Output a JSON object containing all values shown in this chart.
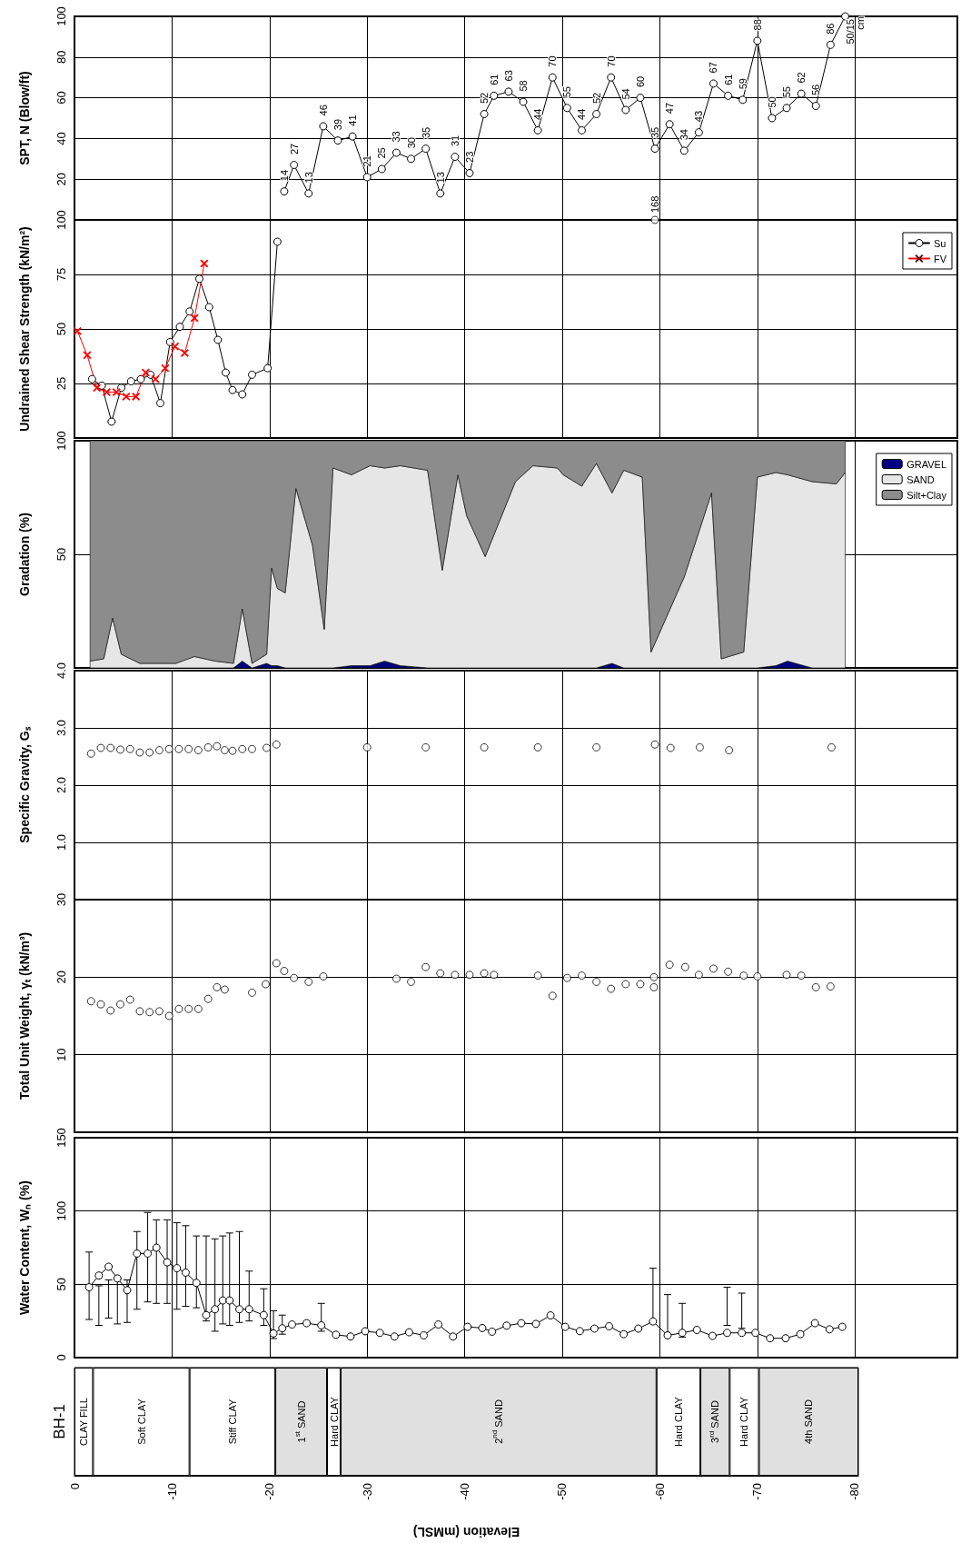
{
  "chart_data": [
    {
      "type": "line",
      "ylabel": "SPT, N (Blow/ft)",
      "xlim": [
        0,
        -90.5
      ],
      "xticks": [
        0,
        -10,
        -20,
        -30,
        -40,
        -50,
        -60,
        -70,
        -80
      ],
      "ylim": [
        0,
        100
      ],
      "yticks": [
        {
          "value": 0,
          "label": null
        },
        20,
        40,
        60,
        80,
        100
      ],
      "tick_labels": "y",
      "grid": true,
      "marker": "circle",
      "series": [
        {
          "color": "#000000",
          "x": [
            -21.5,
            -22.5,
            -24,
            -25.5,
            -27,
            -28.5,
            -30,
            -31.5,
            -33,
            -34.5,
            -36,
            -37.5,
            -39,
            -40.5,
            -42,
            -43,
            -44.5,
            -46,
            -47.5,
            -49,
            -50.5,
            -52,
            -53.5,
            -55,
            -56.5,
            -58,
            -59.5,
            -61,
            -62.5,
            -64,
            -65.5,
            -67,
            -68.5,
            -70,
            -71.5,
            -73,
            -74.5,
            -76,
            -77.5,
            -79
          ],
          "values": [
            14,
            27,
            13,
            46,
            39,
            41,
            21,
            25,
            33,
            30,
            35,
            13,
            31,
            23,
            52,
            61,
            63,
            58,
            44,
            70,
            55,
            44,
            52,
            70,
            54,
            60,
            35,
            47,
            34,
            43,
            67,
            61,
            59,
            88,
            50,
            55,
            62,
            56,
            86,
            100
          ],
          "value_labels": [
            "14",
            "27",
            "13",
            "46",
            "39",
            "41",
            "21",
            "25",
            "33",
            "30",
            "35",
            "13",
            "31",
            "23",
            "52",
            "61",
            "63",
            "58",
            "44",
            "70",
            "55",
            "44",
            "52",
            "70",
            "54",
            "60",
            "35",
            "47",
            "34",
            "43",
            "67",
            "61",
            "59",
            "88",
            "50",
            "55",
            "62",
            "56",
            "86",
            "50/15 cm"
          ]
        }
      ]
    },
    {
      "type": "line",
      "ylabel": "Undrained Shear Strength (kN/m²)",
      "xlim": [
        0,
        -90.5
      ],
      "xticks": [
        0,
        -10,
        -20,
        -30,
        -40,
        -50,
        -60,
        -70,
        -80
      ],
      "ylim": [
        0,
        100
      ],
      "yticks": [
        {
          "value": 0,
          "label": null
        },
        25,
        50,
        75,
        100
      ],
      "tick_labels": "y",
      "grid": true,
      "legend": "top right",
      "annotations": [
        "168"
      ],
      "series": [
        {
          "name": "Su",
          "color": "#000000",
          "marker": "circle",
          "x": [
            -1.8,
            -2.8,
            -3.8,
            -4.8,
            -5.8,
            -6.8,
            -7.8,
            -8.8,
            -9.8,
            -10.8,
            -11.8,
            -12.8,
            -13.8,
            -14.7,
            -15.5,
            -16.2,
            -17.2,
            -18.2,
            -19.8,
            -20.8
          ],
          "values": [
            27,
            24,
            7.5,
            23,
            26,
            27,
            29,
            16,
            44,
            51,
            58,
            73,
            60,
            45,
            30,
            22,
            20,
            29,
            32,
            90
          ]
        },
        {
          "name": "FV",
          "color": "#ff0000",
          "marker": "cross",
          "x": [
            -0.3,
            -1.3,
            -2.3,
            -3.3,
            -4.3,
            -5.3,
            -6.3,
            -7.3,
            -8.3,
            -9.3,
            -10.3,
            -11.3,
            -12.3,
            -13.3
          ],
          "values": [
            49,
            38,
            23,
            21,
            21,
            19,
            19,
            30,
            27,
            32,
            42,
            39,
            55,
            80
          ]
        },
        {
          "type": "scatter",
          "color": "#000000",
          "marker": "circle",
          "x": [
            -59.5
          ],
          "values": [
            100
          ]
        }
      ]
    },
    {
      "type": "area",
      "stacked": true,
      "ylabel": "Gradation (%)",
      "xlim": [
        0,
        -90.5
      ],
      "xticks": [
        0,
        -10,
        -20,
        -30,
        -40,
        -50,
        -60,
        -70,
        -80
      ],
      "ylim": [
        0,
        100
      ],
      "yticks": [
        {
          "value": 0,
          "label": null
        },
        50,
        100
      ],
      "tick_labels": "y",
      "grid": true,
      "legend": "top right",
      "x": [
        -1.6,
        -3,
        -3.9,
        -4.8,
        -6.7,
        -10.4,
        -12.3,
        -14.4,
        -16.3,
        -17.2,
        -18.2,
        -19.7,
        -20.2,
        -20.8,
        -21.6,
        -22.7,
        -24.4,
        -25.6,
        -26.5,
        -28.4,
        -30.3,
        -31.8,
        -33.4,
        -36.2,
        -37.7,
        -39.3,
        -40.2,
        -42.1,
        -45.2,
        -47,
        -49.5,
        -50.1,
        -52,
        -53.5,
        -55.1,
        -56.3,
        -58.2,
        -59.1,
        -62.5,
        -65.3,
        -66.3,
        -68.6,
        -70,
        -71.9,
        -73.1,
        -75.6,
        -78.1,
        -79
      ],
      "series": [
        {
          "name": "GRAVEL",
          "color": "#000080",
          "values": [
            0,
            0,
            0,
            0,
            0,
            0,
            0,
            0,
            0,
            3,
            0,
            2,
            1,
            1,
            0,
            0,
            0,
            0,
            0,
            1,
            1,
            3,
            1,
            0,
            0,
            0,
            0,
            0,
            0,
            0,
            0,
            0,
            0,
            0,
            2,
            0,
            0,
            0,
            0,
            0,
            0,
            0,
            0,
            1,
            3,
            0,
            0,
            0
          ]
        },
        {
          "name": "SAND",
          "color": "#e6e6e6",
          "values": [
            3,
            4,
            22,
            6,
            2,
            2,
            5,
            3,
            2,
            23,
            2,
            4,
            43,
            34,
            33,
            79,
            54,
            17,
            88,
            84,
            88,
            85,
            88,
            87,
            43,
            85,
            67,
            49,
            82,
            89,
            88,
            85,
            80,
            90,
            75,
            87,
            84,
            7,
            40,
            77,
            4,
            7,
            84,
            85,
            82,
            82,
            81,
            86
          ]
        },
        {
          "name": "Silt+Clay",
          "color": "#8c8c8c",
          "values": [
            97,
            96,
            78,
            94,
            98,
            98,
            95,
            97,
            98,
            74,
            98,
            94,
            56,
            65,
            67,
            21,
            46,
            83,
            12,
            15,
            11,
            12,
            11,
            13,
            57,
            15,
            33,
            51,
            18,
            11,
            12,
            15,
            20,
            10,
            23,
            13,
            16,
            93,
            60,
            23,
            96,
            93,
            16,
            14,
            15,
            18,
            19,
            14
          ]
        }
      ]
    },
    {
      "type": "scatter",
      "ylabel": "Specific Gravity, Gₛ",
      "xlim": [
        0,
        -90.5
      ],
      "xticks": [
        0,
        -10,
        -20,
        -30,
        -40,
        -50,
        -60,
        -70,
        -80
      ],
      "ylim": [
        0,
        4
      ],
      "yticks": [
        {
          "value": 0,
          "label": null
        },
        {
          "value": 1,
          "label": "1.0"
        },
        {
          "value": 2,
          "label": "2.0"
        },
        {
          "value": 3,
          "label": "3.0"
        },
        {
          "value": 4,
          "label": "4.0"
        }
      ],
      "tick_labels": "y",
      "grid": true,
      "marker": "circle",
      "series": [
        {
          "color": "#000000",
          "x": [
            -1.7,
            -2.7,
            -3.7,
            -4.7,
            -5.7,
            -6.7,
            -7.7,
            -8.7,
            -9.7,
            -10.7,
            -11.7,
            -12.7,
            -13.7,
            -14.6,
            -15.4,
            -16.2,
            -17.2,
            -18.2,
            -19.7,
            -20.7,
            -30,
            -36,
            -42,
            -47.5,
            -53.5,
            -59.5,
            -61.1,
            -64.1,
            -67.1,
            -77.6
          ],
          "values": [
            2.55,
            2.65,
            2.65,
            2.62,
            2.63,
            2.57,
            2.57,
            2.61,
            2.63,
            2.63,
            2.63,
            2.61,
            2.66,
            2.68,
            2.61,
            2.6,
            2.63,
            2.63,
            2.65,
            2.71,
            2.66,
            2.66,
            2.66,
            2.66,
            2.66,
            2.71,
            2.65,
            2.66,
            2.61,
            2.66
          ]
        }
      ]
    },
    {
      "type": "scatter",
      "ylabel": "Total Unit Weight, γₜ (kN/m³)",
      "xlim": [
        0,
        -90.5
      ],
      "xticks": [
        0,
        -10,
        -20,
        -30,
        -40,
        -50,
        -60,
        -70,
        -80
      ],
      "ylim": [
        0,
        30
      ],
      "yticks": [
        {
          "value": 0,
          "label": null
        },
        10,
        20,
        30
      ],
      "tick_labels": "y",
      "grid": true,
      "marker": "circle",
      "series": [
        {
          "color": "#000000",
          "x": [
            -1.7,
            -2.7,
            -3.7,
            -4.7,
            -5.7,
            -6.7,
            -7.7,
            -8.7,
            -9.7,
            -10.7,
            -11.7,
            -12.7,
            -13.7,
            -14.6,
            -15.4,
            -18.2,
            -19.6,
            -20.7,
            -21.5,
            -22.5,
            -24,
            -25.5,
            -33,
            -34.5,
            -36,
            -37.5,
            -39,
            -40.5,
            -42,
            -43,
            -47.5,
            -49,
            -50.5,
            -52,
            -53.5,
            -55,
            -56.5,
            -58,
            -59.4,
            -59.4,
            -61,
            -62.6,
            -64,
            -65.5,
            -67,
            -68.6,
            -70,
            -73,
            -74.5,
            -76,
            -77.5
          ],
          "values": [
            16.9,
            16.5,
            15.7,
            16.5,
            17.1,
            15.6,
            15.5,
            15.6,
            15,
            15.9,
            15.9,
            15.9,
            17.2,
            18.7,
            18.4,
            18,
            19.1,
            21.8,
            20.8,
            19.9,
            19.4,
            20.1,
            19.8,
            19.4,
            21.3,
            20.5,
            20.3,
            20.3,
            20.5,
            20.3,
            20.2,
            17.6,
            19.9,
            20.2,
            19.4,
            18.5,
            19.1,
            19.1,
            20,
            18.7,
            21.6,
            21.3,
            20.3,
            21.1,
            20.7,
            20.2,
            20.1,
            20.3,
            20.2,
            18.7,
            18.8
          ]
        }
      ]
    },
    {
      "type": "line",
      "ylabel": "Water Content, Wₙ (%)",
      "xlim": [
        0,
        -90.5
      ],
      "xticks": [
        0,
        -10,
        -20,
        -30,
        -40,
        -50,
        -60,
        -70,
        -80
      ],
      "ylim": [
        0,
        150
      ],
      "yticks": [
        0,
        50,
        100,
        150
      ],
      "tick_labels": "y",
      "grid": true,
      "marker": "circle",
      "series": [
        {
          "color": "#000000",
          "x": [
            -1.5,
            -2.5,
            -3.5,
            -4.4,
            -5.4,
            -6.4,
            -7.5,
            -8.4,
            -9.5,
            -10.5,
            -11.4,
            -12.5,
            -13.5,
            -14.4,
            -15.2,
            -15.9,
            -16.9,
            -17.9,
            -19.4,
            -20.4,
            -21.3,
            -22.3,
            -23.8,
            -25.3,
            -26.8,
            -28.3,
            -29.8,
            -31.3,
            -32.8,
            -34.3,
            -35.8,
            -37.3,
            -38.8,
            -40.3,
            -41.8,
            -42.8,
            -44.3,
            -45.8,
            -47.3,
            -48.8,
            -50.3,
            -51.8,
            -53.3,
            -54.8,
            -56.3,
            -57.8,
            -59.3,
            -60.8,
            -62.3,
            -63.8,
            -65.4,
            -66.9,
            -68.4,
            -69.8,
            -71.3,
            -72.9,
            -74.4,
            -75.9,
            -77.4,
            -78.7
          ],
          "values": [
            48,
            56,
            62,
            54,
            46,
            71,
            71,
            75,
            65,
            61,
            58,
            51,
            29,
            33,
            39,
            39,
            33,
            33,
            29,
            16.5,
            20,
            22.6,
            23.5,
            22,
            15.6,
            14.4,
            18,
            16.9,
            14.4,
            17.3,
            15.2,
            22.6,
            14.4,
            21,
            20.2,
            17.7,
            21.8,
            23.5,
            23,
            28.8,
            21,
            18.1,
            19.8,
            21.4,
            16,
            19.8,
            24.7,
            15.2,
            16.9,
            18.9,
            14.8,
            16.9,
            16.9,
            16.9,
            13.2,
            13.2,
            16,
            23.5,
            19.3,
            21
          ],
          "errors": [
            [
              26,
              72
            ],
            [
              22,
              49
            ],
            [
              27,
              53
            ],
            [
              23,
              53
            ],
            [
              24,
              53
            ],
            [
              33,
              86
            ],
            [
              38,
              99
            ],
            [
              37,
              94
            ],
            [
              37,
              94
            ],
            [
              33,
              92
            ],
            [
              35,
              90
            ],
            [
              34,
              83
            ],
            [
              25,
              83
            ],
            [
              18,
              81
            ],
            [
              23,
              83
            ],
            [
              22,
              85
            ],
            [
              24,
              86
            ],
            [
              25,
              59
            ],
            [
              22,
              47
            ],
            [
              13,
              32
            ],
            [
              16,
              29
            ],
            null,
            null,
            [
              18,
              37
            ],
            null,
            null,
            null,
            null,
            null,
            null,
            null,
            null,
            null,
            null,
            null,
            null,
            null,
            null,
            null,
            null,
            null,
            null,
            null,
            null,
            null,
            null,
            [
              24,
              61
            ],
            [
              16,
              43
            ],
            [
              14,
              37
            ],
            null,
            null,
            [
              22,
              48
            ],
            [
              20,
              44
            ],
            null,
            null,
            null,
            null,
            null,
            null,
            null
          ]
        }
      ]
    },
    {
      "type": "bar",
      "orientation": "horizontal",
      "stacked": true,
      "categories": [
        "BH-1"
      ],
      "xlabel": "Elevation (mMSL)",
      "xlim": [
        0,
        -80.4
      ],
      "xticks": [
        0,
        -10,
        -20,
        -30,
        -40,
        -50,
        -60,
        -70,
        -80
      ],
      "series": [
        {
          "name": "CLAY FILL",
          "color": "#ffffff",
          "values": [
            -1.9
          ]
        },
        {
          "name": "Soft CLAY",
          "color": "#ffffff",
          "values": [
            -9.9
          ]
        },
        {
          "name": "Stiff CLAY",
          "color": "#ffffff",
          "values": [
            -8.8
          ]
        },
        {
          "name": "1$^{st}$ SAND",
          "color": "#e0e0e0",
          "values": [
            -5.3
          ]
        },
        {
          "name": "Hard CLAY",
          "color": "#ffffff",
          "values": [
            -1.4
          ]
        },
        {
          "name": "2$^{nd}$ SAND",
          "color": "#e0e0e0",
          "values": [
            -32.4
          ]
        },
        {
          "name": "Hard CLAY",
          "color": "#ffffff",
          "values": [
            -4.5
          ]
        },
        {
          "name": "3$^{rd}$ SAND",
          "color": "#e0e0e0",
          "values": [
            -3.0
          ]
        },
        {
          "name": "Hard CLAY",
          "color": "#ffffff",
          "values": [
            -3.0
          ]
        },
        {
          "name": "4th SAND",
          "color": "#e0e0e0",
          "values": [
            -10.2
          ]
        }
      ]
    }
  ]
}
